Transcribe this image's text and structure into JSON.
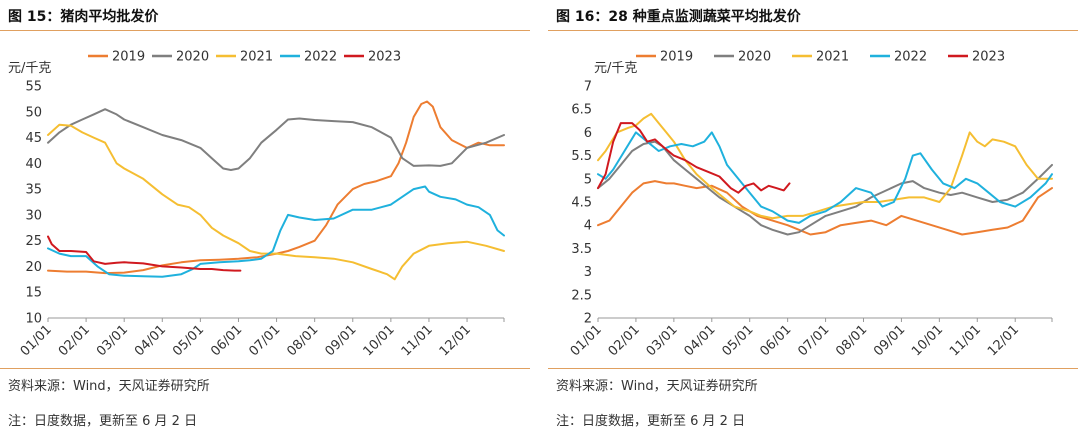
{
  "panels": [
    {
      "title": "图 15：猪肉平均批发价",
      "source": "资料来源：Wind，天风证券研究所",
      "note": "注：日度数据，更新至 6 月 2 日"
    },
    {
      "title": "图 16：28 种重点监测蔬菜平均批发价",
      "source": "资料来源：Wind，天风证券研究所",
      "note": "注：日度数据，更新至 6 月 2 日"
    }
  ],
  "chart_data": [
    {
      "type": "line",
      "title": "图 15：猪肉平均批发价",
      "ylabel": "元/千克",
      "xlabel": "",
      "ylim": [
        10,
        55
      ],
      "yticks": [
        10,
        15,
        20,
        25,
        30,
        35,
        40,
        45,
        50,
        55
      ],
      "xlim": [
        1,
        12.97
      ],
      "categories": [
        "01/01",
        "02/01",
        "03/01",
        "04/01",
        "05/01",
        "06/01",
        "07/01",
        "08/01",
        "09/01",
        "10/01",
        "11/01",
        "12/01"
      ],
      "grid": false,
      "legend": "top",
      "colors": {
        "2019": "#ED7D31",
        "2020": "#7F7F7F",
        "2021": "#F5BE32",
        "2022": "#1FB1DD",
        "2023": "#D0191F"
      },
      "series": [
        {
          "name": "2019",
          "x": [
            1,
            1.5,
            2,
            2.5,
            3,
            3.5,
            4,
            4.5,
            5,
            5.5,
            6,
            6.5,
            7,
            7.3,
            7.6,
            8,
            8.3,
            8.6,
            9,
            9.3,
            9.6,
            10,
            10.2,
            10.4,
            10.6,
            10.8,
            10.95,
            11.1,
            11.3,
            11.6,
            12,
            12.3,
            12.6,
            12.97
          ],
          "y": [
            19.2,
            19.0,
            19.0,
            18.7,
            18.8,
            19.3,
            20.2,
            20.8,
            21.2,
            21.3,
            21.5,
            21.8,
            22.5,
            23.0,
            23.8,
            25,
            28,
            32,
            35,
            36,
            36.5,
            37.5,
            40,
            44,
            49,
            51.5,
            52,
            51,
            47,
            44.5,
            43,
            44,
            43.5,
            43.5
          ]
        },
        {
          "name": "2020",
          "x": [
            1,
            1.3,
            1.6,
            1.9,
            2.2,
            2.5,
            2.8,
            3,
            3.5,
            4,
            4.5,
            5,
            5.3,
            5.6,
            5.8,
            6,
            6.3,
            6.6,
            7,
            7.3,
            7.6,
            8,
            8.5,
            9,
            9.5,
            10,
            10.3,
            10.6,
            11,
            11.3,
            11.6,
            12,
            12.5,
            12.97
          ],
          "y": [
            44,
            46,
            47.5,
            48.5,
            49.5,
            50.5,
            49.5,
            48.5,
            47,
            45.5,
            44.5,
            43,
            41,
            39,
            38.7,
            39,
            41,
            44,
            46.5,
            48.5,
            48.7,
            48.4,
            48.2,
            48.0,
            47,
            45,
            41,
            39.5,
            39.6,
            39.5,
            40,
            43,
            44,
            45.5
          ]
        },
        {
          "name": "2021",
          "x": [
            1,
            1.3,
            1.6,
            1.9,
            2.2,
            2.5,
            2.8,
            3,
            3.5,
            4,
            4.4,
            4.7,
            5,
            5.3,
            5.6,
            6,
            6.3,
            6.6,
            7,
            7.5,
            8,
            8.5,
            9,
            9.5,
            9.9,
            10.1,
            10.3,
            10.6,
            11,
            11.5,
            12,
            12.5,
            12.97
          ],
          "y": [
            45.5,
            47.5,
            47.3,
            46,
            45,
            44,
            40,
            39,
            37,
            34,
            32,
            31.5,
            30,
            27.5,
            26,
            24.5,
            23,
            22.5,
            22.5,
            22,
            21.8,
            21.5,
            20.8,
            19.5,
            18.5,
            17.5,
            20,
            22.5,
            24,
            24.5,
            24.8,
            24,
            23
          ]
        },
        {
          "name": "2022",
          "x": [
            1,
            1.3,
            1.6,
            2,
            2.3,
            2.6,
            3,
            3.5,
            4,
            4.5,
            4.8,
            5,
            5.5,
            6,
            6.3,
            6.6,
            6.9,
            7.1,
            7.3,
            7.6,
            8,
            8.5,
            9,
            9.5,
            10,
            10.3,
            10.6,
            10.9,
            11,
            11.3,
            11.7,
            12,
            12.3,
            12.6,
            12.8,
            12.97
          ],
          "y": [
            23.5,
            22.5,
            22,
            22,
            20,
            18.5,
            18.2,
            18.1,
            18.0,
            18.5,
            19.5,
            20.5,
            20.8,
            21,
            21.2,
            21.5,
            23,
            27,
            30,
            29.5,
            29,
            29.3,
            31,
            31,
            32,
            33.5,
            35,
            35.5,
            34.5,
            33.5,
            33,
            32,
            31.5,
            30,
            27,
            26
          ]
        },
        {
          "name": "2023",
          "x": [
            1,
            1.1,
            1.3,
            1.6,
            2,
            2.2,
            2.5,
            2.8,
            3,
            3.5,
            4,
            4.5,
            5,
            5.3,
            5.6,
            5.9,
            6.05
          ],
          "y": [
            25.8,
            24.3,
            23.0,
            23.0,
            22.8,
            21.0,
            20.5,
            20.7,
            20.8,
            20.6,
            20.0,
            19.8,
            19.5,
            19.5,
            19.3,
            19.2,
            19.2
          ]
        }
      ]
    },
    {
      "type": "line",
      "title": "图 16：28 种重点监测蔬菜平均批发价",
      "ylabel": "元/千克",
      "xlabel": "",
      "ylim": [
        2,
        7
      ],
      "yticks": [
        2,
        2.5,
        3,
        3.5,
        4,
        4.5,
        5,
        5.5,
        6,
        6.5,
        7
      ],
      "xlim": [
        1,
        12.97
      ],
      "categories": [
        "01/01",
        "02/01",
        "03/01",
        "04/01",
        "05/01",
        "06/01",
        "07/01",
        "08/01",
        "09/01",
        "10/01",
        "11/01",
        "12/01"
      ],
      "grid": false,
      "legend": "top",
      "colors": {
        "2019": "#ED7D31",
        "2020": "#7F7F7F",
        "2021": "#F5BE32",
        "2022": "#1FB1DD",
        "2023": "#D0191F"
      },
      "series": [
        {
          "name": "2019",
          "x": [
            1,
            1.3,
            1.6,
            1.9,
            2.2,
            2.5,
            2.8,
            3,
            3.3,
            3.6,
            4,
            4.4,
            4.8,
            5.2,
            5.6,
            6,
            6.3,
            6.6,
            7,
            7.4,
            7.8,
            8.2,
            8.6,
            9,
            9.4,
            9.8,
            10.2,
            10.6,
            11,
            11.4,
            11.8,
            12.2,
            12.6,
            12.97
          ],
          "y": [
            4.0,
            4.1,
            4.4,
            4.7,
            4.9,
            4.95,
            4.9,
            4.9,
            4.85,
            4.8,
            4.85,
            4.7,
            4.4,
            4.2,
            4.1,
            4.0,
            3.9,
            3.8,
            3.85,
            4.0,
            4.05,
            4.1,
            4.0,
            4.2,
            4.1,
            4.0,
            3.9,
            3.8,
            3.85,
            3.9,
            3.95,
            4.1,
            4.6,
            4.8
          ]
        },
        {
          "name": "2020",
          "x": [
            1,
            1.3,
            1.6,
            1.9,
            2.2,
            2.5,
            2.7,
            3,
            3.3,
            3.6,
            3.9,
            4.2,
            4.5,
            4.8,
            5,
            5.3,
            5.6,
            6,
            6.3,
            6.6,
            7,
            7.4,
            7.8,
            8.2,
            8.6,
            9,
            9.3,
            9.6,
            10,
            10.3,
            10.6,
            11,
            11.4,
            11.8,
            12.2,
            12.6,
            12.97
          ],
          "y": [
            4.8,
            5.0,
            5.3,
            5.6,
            5.75,
            5.8,
            5.7,
            5.4,
            5.2,
            5.0,
            4.8,
            4.6,
            4.45,
            4.3,
            4.2,
            4.0,
            3.9,
            3.8,
            3.85,
            4.0,
            4.2,
            4.3,
            4.4,
            4.6,
            4.75,
            4.9,
            4.95,
            4.8,
            4.7,
            4.65,
            4.7,
            4.6,
            4.5,
            4.55,
            4.7,
            5.0,
            5.3
          ]
        },
        {
          "name": "2021",
          "x": [
            1,
            1.2,
            1.5,
            1.8,
            2,
            2.2,
            2.4,
            2.6,
            2.8,
            3,
            3.3,
            3.6,
            4,
            4.3,
            4.6,
            5,
            5.3,
            5.6,
            6,
            6.4,
            6.8,
            7.2,
            7.6,
            8,
            8.4,
            8.8,
            9.2,
            9.6,
            10,
            10.3,
            10.6,
            10.8,
            11,
            11.2,
            11.4,
            11.7,
            12,
            12.3,
            12.6,
            12.97
          ],
          "y": [
            5.4,
            5.6,
            6.0,
            6.1,
            6.15,
            6.3,
            6.4,
            6.2,
            6.0,
            5.8,
            5.4,
            5.1,
            4.8,
            4.6,
            4.4,
            4.3,
            4.2,
            4.15,
            4.2,
            4.2,
            4.3,
            4.4,
            4.45,
            4.5,
            4.5,
            4.55,
            4.6,
            4.6,
            4.5,
            4.8,
            5.5,
            6.0,
            5.8,
            5.7,
            5.85,
            5.8,
            5.7,
            5.3,
            5.0,
            5.0
          ]
        },
        {
          "name": "2022",
          "x": [
            1,
            1.2,
            1.4,
            1.7,
            2,
            2.3,
            2.6,
            2.9,
            3.2,
            3.5,
            3.8,
            4,
            4.2,
            4.4,
            4.7,
            5,
            5.3,
            5.6,
            6,
            6.3,
            6.6,
            7,
            7.4,
            7.8,
            8.2,
            8.5,
            8.8,
            9.1,
            9.3,
            9.5,
            9.8,
            10.1,
            10.4,
            10.7,
            11,
            11.3,
            11.6,
            12,
            12.4,
            12.8,
            12.97
          ],
          "y": [
            5.1,
            5.0,
            5.2,
            5.6,
            6.0,
            5.8,
            5.6,
            5.7,
            5.75,
            5.7,
            5.8,
            6.0,
            5.7,
            5.3,
            5.0,
            4.7,
            4.4,
            4.3,
            4.1,
            4.05,
            4.2,
            4.3,
            4.5,
            4.8,
            4.7,
            4.4,
            4.5,
            5.0,
            5.5,
            5.55,
            5.2,
            4.9,
            4.8,
            5.0,
            4.9,
            4.7,
            4.5,
            4.4,
            4.6,
            4.9,
            5.1
          ]
        },
        {
          "name": "2023",
          "x": [
            1,
            1.2,
            1.4,
            1.6,
            1.9,
            2.1,
            2.3,
            2.5,
            2.7,
            3,
            3.3,
            3.6,
            3.9,
            4.2,
            4.5,
            4.7,
            4.9,
            5.1,
            5.3,
            5.5,
            5.7,
            5.9,
            6.05
          ],
          "y": [
            4.8,
            5.1,
            5.8,
            6.2,
            6.2,
            6.05,
            5.8,
            5.85,
            5.7,
            5.5,
            5.4,
            5.25,
            5.15,
            5.05,
            4.8,
            4.7,
            4.85,
            4.9,
            4.75,
            4.85,
            4.8,
            4.75,
            4.9
          ]
        }
      ]
    }
  ]
}
